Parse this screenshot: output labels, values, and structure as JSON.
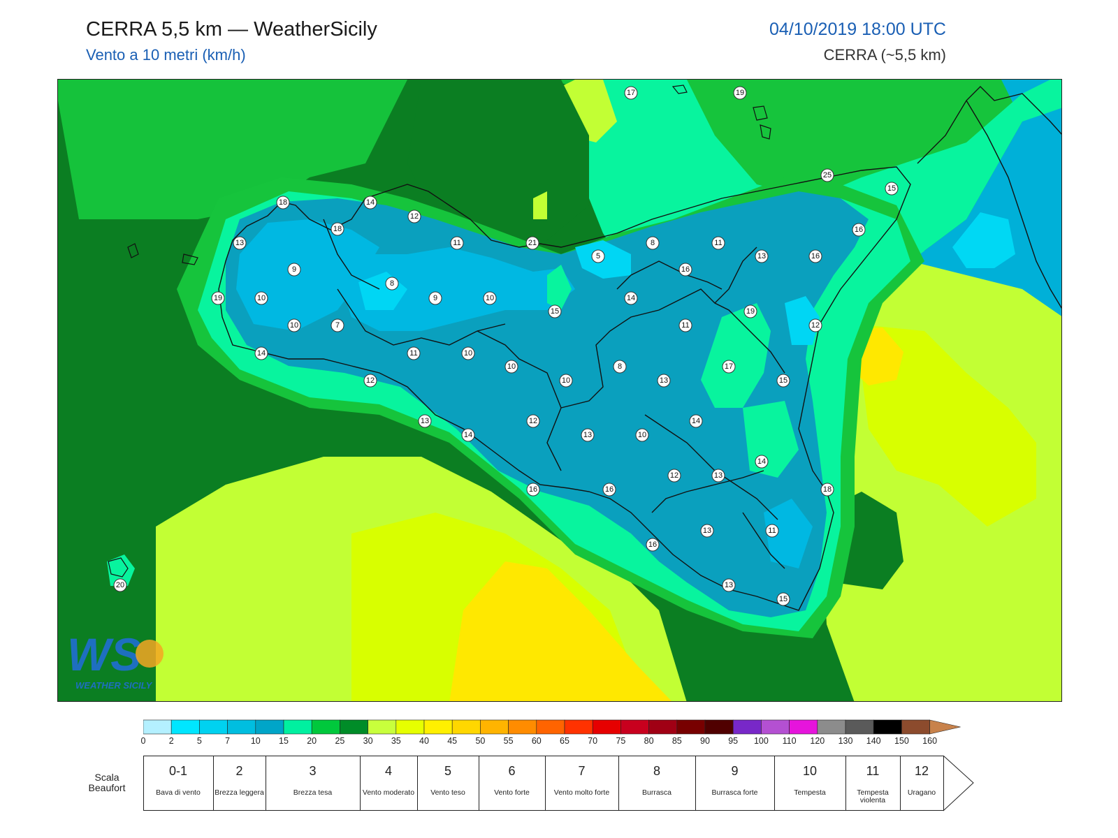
{
  "header": {
    "title": "CERRA 5,5 km — WeatherSicily",
    "subtitle": "Vento a 10 metri (km/h)",
    "datetime": "04/10/2019 18:00 UTC",
    "model": "CERRA (~5,5 km)"
  },
  "logo": {
    "letters": "WS",
    "text": "WEATHER SICILY"
  },
  "colors": {
    "c0": "#b4f0ff",
    "c2": "#00d9f4",
    "c5": "#00c8ea",
    "c7": "#00b4dc",
    "c10": "#0099b8",
    "c15": "#00fa9a",
    "c20": "#00c832",
    "c25": "#00821e",
    "c30": "#b4ff2e",
    "c35": "#ccff00",
    "c40": "#ffe600",
    "c45": "#ffc800",
    "land_outline": "#111111"
  },
  "stations": [
    {
      "value": "17"
    },
    {
      "value": "19"
    },
    {
      "value": "25"
    },
    {
      "value": "15"
    },
    {
      "value": "16"
    },
    {
      "value": "18"
    },
    {
      "value": "14"
    },
    {
      "value": "12"
    },
    {
      "value": "18"
    },
    {
      "value": "13"
    },
    {
      "value": "11"
    },
    {
      "value": "21"
    },
    {
      "value": "5"
    },
    {
      "value": "8"
    },
    {
      "value": "11"
    },
    {
      "value": "13"
    },
    {
      "value": "16"
    },
    {
      "value": "9"
    },
    {
      "value": "16"
    },
    {
      "value": "19"
    },
    {
      "value": "10"
    },
    {
      "value": "8"
    },
    {
      "value": "9"
    },
    {
      "value": "10"
    },
    {
      "value": "15"
    },
    {
      "value": "14"
    },
    {
      "value": "19"
    },
    {
      "value": "10"
    },
    {
      "value": "7"
    },
    {
      "value": "11"
    },
    {
      "value": "12"
    },
    {
      "value": "14"
    },
    {
      "value": "11"
    },
    {
      "value": "10"
    },
    {
      "value": "10"
    },
    {
      "value": "8"
    },
    {
      "value": "17"
    },
    {
      "value": "10"
    },
    {
      "value": "13"
    },
    {
      "value": "15"
    },
    {
      "value": "12"
    },
    {
      "value": "13"
    },
    {
      "value": "14"
    },
    {
      "value": "12"
    },
    {
      "value": "13"
    },
    {
      "value": "10"
    },
    {
      "value": "14"
    },
    {
      "value": "14"
    },
    {
      "value": "16"
    },
    {
      "value": "16"
    },
    {
      "value": "12"
    },
    {
      "value": "13"
    },
    {
      "value": "18"
    },
    {
      "value": "13"
    },
    {
      "value": "11"
    },
    {
      "value": "16"
    },
    {
      "value": "13"
    },
    {
      "value": "15"
    },
    {
      "value": "20"
    }
  ],
  "colorbar": {
    "ticks": [
      "0",
      "2",
      "5",
      "7",
      "10",
      "15",
      "20",
      "25",
      "30",
      "35",
      "40",
      "45",
      "50",
      "55",
      "60",
      "65",
      "70",
      "75",
      "80",
      "85",
      "90",
      "95",
      "100",
      "110",
      "120",
      "130",
      "140",
      "150",
      "160"
    ],
    "colors": [
      "#b4f0ff",
      "#00e6ff",
      "#00d2f0",
      "#00bee0",
      "#00a5c8",
      "#00f0a0",
      "#00c83c",
      "#008c28",
      "#c8ff3c",
      "#e6ff00",
      "#fff000",
      "#ffd700",
      "#ffb400",
      "#ff8c00",
      "#ff6400",
      "#ff3200",
      "#e60000",
      "#c8001e",
      "#a00014",
      "#780000",
      "#500000",
      "#7828c8",
      "#b450d2",
      "#e614dc",
      "#8c8c8c",
      "#5a5a5a",
      "#000000",
      "#8c4b2d",
      "#c8824b"
    ]
  },
  "beaufort": {
    "title": "Scala Beaufort",
    "scale": [
      {
        "num": "0-1",
        "desc": "Bava di vento"
      },
      {
        "num": "2",
        "desc": "Brezza leggera"
      },
      {
        "num": "3",
        "desc": "Brezza tesa"
      },
      {
        "num": "4",
        "desc": "Vento moderato"
      },
      {
        "num": "5",
        "desc": "Vento teso"
      },
      {
        "num": "6",
        "desc": "Vento forte"
      },
      {
        "num": "7",
        "desc": "Vento molto forte"
      },
      {
        "num": "8",
        "desc": "Burrasca"
      },
      {
        "num": "9",
        "desc": "Burrasca forte"
      },
      {
        "num": "10",
        "desc": "Tempesta"
      },
      {
        "num": "11",
        "desc": "Tempesta violenta"
      },
      {
        "num": "12",
        "desc": "Uragano"
      }
    ]
  }
}
